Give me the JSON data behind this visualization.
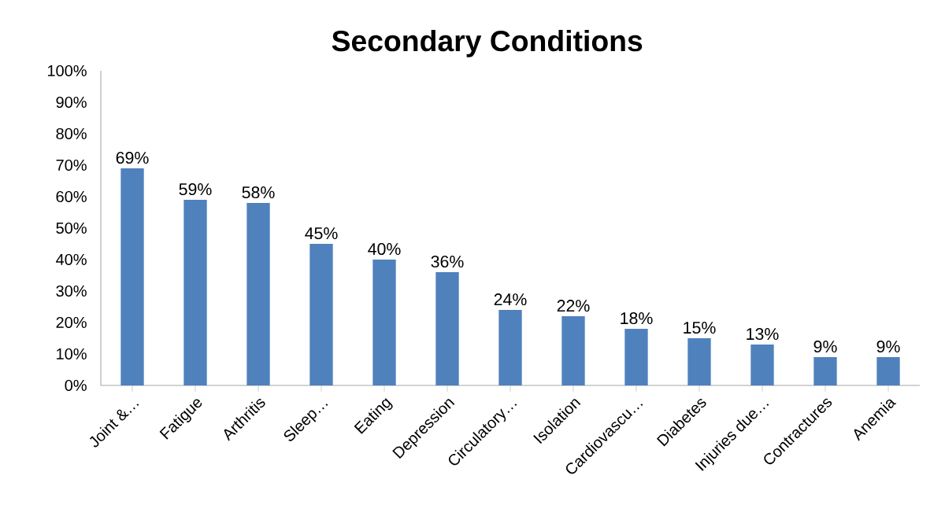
{
  "chart_data": {
    "type": "bar",
    "title": "Secondary Conditions",
    "categories": [
      "Joint &…",
      "Fatigue",
      "Arthritis",
      "Sleep…",
      "Eating",
      "Depression",
      "Circulatory…",
      "Isolation",
      "Cardiovascu…",
      "Diabetes",
      "Injuries due…",
      "Contractures",
      "Anemia"
    ],
    "values": [
      69,
      59,
      58,
      45,
      40,
      36,
      24,
      22,
      18,
      15,
      13,
      9,
      9
    ],
    "value_labels": [
      "69%",
      "59%",
      "58%",
      "45%",
      "40%",
      "36%",
      "24%",
      "22%",
      "18%",
      "15%",
      "13%",
      "9%",
      "9%"
    ],
    "color": "#4f81bd",
    "ylim": [
      0,
      100
    ],
    "yticks": [
      {
        "value": 0,
        "label": "0%"
      },
      {
        "value": 10,
        "label": "10%"
      },
      {
        "value": 20,
        "label": "20%"
      },
      {
        "value": 30,
        "label": "30%"
      },
      {
        "value": 40,
        "label": "40%"
      },
      {
        "value": 50,
        "label": "50%"
      },
      {
        "value": 60,
        "label": "60%"
      },
      {
        "value": 70,
        "label": "70%"
      },
      {
        "value": 80,
        "label": "80%"
      },
      {
        "value": 90,
        "label": "90%"
      },
      {
        "value": 100,
        "label": "100%"
      }
    ],
    "grid": false
  }
}
